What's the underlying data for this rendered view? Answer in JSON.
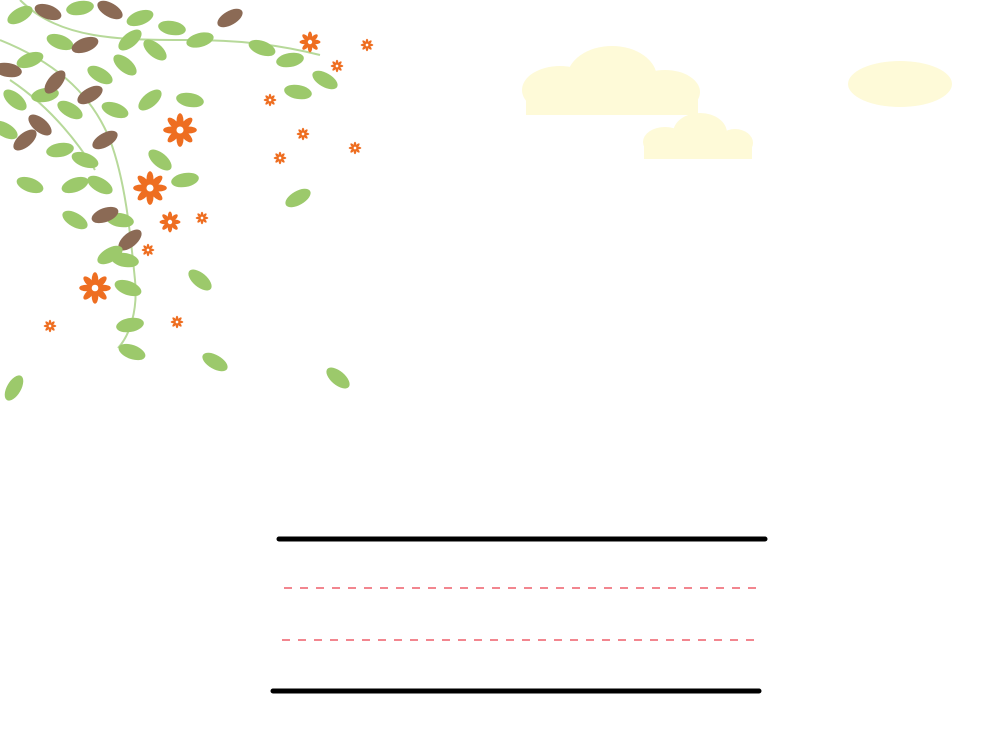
{
  "canvas": {
    "background": "#ffffff"
  },
  "decoration": {
    "type": "vine-with-leaves-and-flowers",
    "leaf_green": "#9cc96b",
    "leaf_brown": "#8b6a55",
    "flower_orange": "#ee6e21",
    "vine_color": "#b7d99a",
    "clouds": {
      "count": 3,
      "color": "#fefad8"
    }
  },
  "writing_guide": {
    "type": "four-line-handwriting-guide",
    "solid_line_color": "#000000",
    "dashed_line_color": "#ee5f6a",
    "solid_lines": 2,
    "dashed_lines": 2
  }
}
